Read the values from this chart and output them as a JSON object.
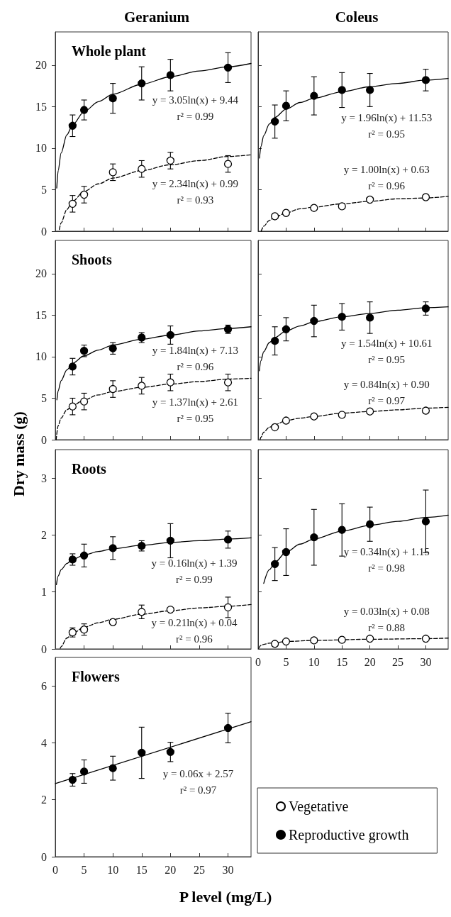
{
  "chart_data": [
    {
      "type": "scatter",
      "title": "Geranium",
      "subtitle": "Whole plant",
      "x": [
        3,
        5,
        10,
        15,
        20,
        30
      ],
      "xlim": [
        0,
        34
      ],
      "xticks": [
        0,
        5,
        10,
        15,
        20,
        25,
        30
      ],
      "ylim": [
        0,
        24
      ],
      "yticks": [
        0,
        5,
        10,
        15,
        20
      ],
      "tick_labels": "y",
      "series": [
        {
          "type": "line",
          "color": "#000000",
          "marker": "none",
          "line_style": "dashed",
          "x": [
            0.7,
            1,
            2,
            3,
            5,
            7.5,
            10,
            15,
            20,
            25,
            30,
            34
          ],
          "values": [
            0.2,
            1.0,
            2.6,
            3.6,
            4.8,
            5.7,
            6.4,
            7.3,
            8.0,
            8.5,
            9.0,
            9.2
          ]
        },
        {
          "type": "line",
          "color": "#000000",
          "marker": "none",
          "line_style": "solid",
          "x": [
            0.25,
            0.5,
            1,
            2,
            3,
            5,
            7.5,
            10,
            15,
            20,
            25,
            30,
            34
          ],
          "values": [
            5.2,
            7.3,
            9.4,
            11.6,
            12.8,
            14.4,
            15.6,
            16.5,
            17.7,
            18.6,
            19.3,
            19.8,
            20.2
          ]
        },
        {
          "color": "#ffffff",
          "marker": "circle",
          "values": [
            3.3,
            4.4,
            7.1,
            7.5,
            8.5,
            8.1
          ],
          "errors": [
            1.0,
            1.0,
            1.0,
            1.0,
            1.0,
            1.0
          ]
        },
        {
          "color": "#000000",
          "marker": "circle",
          "values": [
            12.7,
            14.6,
            16.0,
            17.8,
            18.8,
            19.7
          ],
          "errors": [
            1.3,
            1.2,
            1.8,
            2.0,
            1.9,
            1.8
          ]
        }
      ],
      "annotations": [
        "y = 3.05ln(x) + 9.44\nr² = 0.99",
        "y = 2.34ln(x) + 0.99\nr² = 0.93"
      ]
    },
    {
      "type": "scatter",
      "title": "Coleus",
      "x": [
        3,
        5,
        10,
        15,
        20,
        30
      ],
      "xlim": [
        0,
        34
      ],
      "xticks": [
        0,
        5,
        10,
        15,
        20,
        25,
        30
      ],
      "ylim": [
        0,
        24
      ],
      "yticks": [
        0,
        5,
        10,
        15,
        20
      ],
      "tick_labels": false,
      "series": [
        {
          "type": "line",
          "color": "#000000",
          "marker": "none",
          "line_style": "dashed",
          "x": [
            0.55,
            1,
            2,
            3,
            5,
            7.5,
            10,
            15,
            20,
            25,
            30,
            34
          ],
          "values": [
            0.0,
            0.6,
            1.3,
            1.7,
            2.2,
            2.7,
            2.9,
            3.3,
            3.6,
            3.9,
            4.0,
            4.2
          ]
        },
        {
          "type": "line",
          "color": "#000000",
          "marker": "none",
          "line_style": "solid",
          "x": [
            0.25,
            0.5,
            1,
            2,
            3,
            5,
            7.5,
            10,
            15,
            20,
            25,
            30,
            34
          ],
          "values": [
            8.8,
            10.2,
            11.5,
            12.9,
            13.7,
            14.7,
            15.5,
            16.0,
            16.8,
            17.4,
            17.8,
            18.2,
            18.4
          ]
        },
        {
          "color": "#ffffff",
          "marker": "circle",
          "values": [
            1.8,
            2.2,
            2.8,
            3.0,
            3.8,
            4.1
          ]
        },
        {
          "color": "#000000",
          "marker": "circle",
          "values": [
            13.2,
            15.1,
            16.3,
            17.0,
            17.0,
            18.2
          ],
          "errors": [
            2.0,
            1.8,
            2.3,
            2.1,
            2.0,
            1.3
          ]
        }
      ],
      "annotations": [
        "y = 1.96ln(x) + 11.53\nr² = 0.95",
        "y = 1.00ln(x) + 0.63\nr² = 0.96"
      ]
    },
    {
      "type": "scatter",
      "subtitle": "Shoots",
      "x": [
        3,
        5,
        10,
        15,
        20,
        30
      ],
      "xlim": [
        0,
        34
      ],
      "xticks": [
        0,
        5,
        10,
        15,
        20,
        25,
        30
      ],
      "ylim": [
        0,
        24
      ],
      "yticks": [
        0,
        5,
        10,
        15,
        20
      ],
      "tick_labels": "y",
      "series": [
        {
          "type": "line",
          "color": "#000000",
          "marker": "none",
          "line_style": "dashed",
          "x": [
            0.15,
            0.5,
            1,
            2,
            3,
            5,
            7.5,
            10,
            15,
            20,
            25,
            30,
            34
          ],
          "values": [
            0.0,
            1.7,
            2.6,
            3.6,
            4.1,
            4.8,
            5.4,
            5.8,
            6.3,
            6.7,
            7.0,
            7.3,
            7.4
          ]
        },
        {
          "type": "line",
          "color": "#000000",
          "marker": "none",
          "line_style": "solid",
          "x": [
            0.28,
            0.5,
            1,
            2,
            3,
            5,
            7.5,
            10,
            15,
            20,
            25,
            30,
            34
          ],
          "values": [
            4.8,
            5.9,
            7.1,
            8.4,
            9.2,
            10.1,
            10.8,
            11.4,
            12.1,
            12.6,
            13.1,
            13.4,
            13.6
          ]
        },
        {
          "color": "#ffffff",
          "marker": "circle",
          "values": [
            4.0,
            4.6,
            6.1,
            6.5,
            6.9,
            6.9
          ],
          "errors": [
            1.0,
            1.0,
            1.0,
            1.0,
            1.0,
            1.0
          ]
        },
        {
          "color": "#000000",
          "marker": "circle",
          "values": [
            8.8,
            10.7,
            11.0,
            12.3,
            12.6,
            13.3
          ],
          "errors": [
            1.0,
            0.7,
            0.7,
            0.6,
            1.1,
            0.5
          ]
        }
      ],
      "annotations": [
        "y = 1.84ln(x) + 7.13\nr² = 0.96",
        "y = 1.37ln(x) + 2.61\nr² = 0.95"
      ]
    },
    {
      "type": "scatter",
      "x": [
        3,
        5,
        10,
        15,
        20,
        30
      ],
      "xlim": [
        0,
        34
      ],
      "xticks": [
        0,
        5,
        10,
        15,
        20,
        25,
        30
      ],
      "ylim": [
        0,
        24
      ],
      "yticks": [
        0,
        5,
        10,
        15,
        20
      ],
      "tick_labels": false,
      "series": [
        {
          "type": "line",
          "color": "#000000",
          "marker": "none",
          "line_style": "dashed",
          "x": [
            0.35,
            0.5,
            1,
            2,
            3,
            5,
            7.5,
            10,
            15,
            20,
            25,
            30,
            34
          ],
          "values": [
            0.0,
            0.3,
            0.9,
            1.5,
            1.8,
            2.3,
            2.6,
            2.8,
            3.2,
            3.4,
            3.6,
            3.8,
            3.9
          ]
        },
        {
          "type": "line",
          "color": "#000000",
          "marker": "none",
          "line_style": "solid",
          "x": [
            0.22,
            0.5,
            1,
            2,
            3,
            5,
            7.5,
            10,
            15,
            20,
            25,
            30,
            34
          ],
          "values": [
            8.3,
            9.5,
            10.6,
            11.7,
            12.3,
            13.1,
            13.7,
            14.2,
            14.8,
            15.2,
            15.6,
            15.9,
            16.0
          ]
        },
        {
          "color": "#ffffff",
          "marker": "circle",
          "values": [
            1.5,
            2.3,
            2.8,
            3.0,
            3.4,
            3.5
          ]
        },
        {
          "color": "#000000",
          "marker": "circle",
          "values": [
            11.9,
            13.3,
            14.3,
            14.8,
            14.7,
            15.8
          ],
          "errors": [
            1.7,
            1.4,
            1.9,
            1.6,
            1.9,
            0.8
          ]
        }
      ],
      "annotations": [
        "y = 1.54ln(x) + 10.61\nr² = 0.95",
        "y = 0.84ln(x) + 0.90\nr² = 0.97"
      ]
    },
    {
      "type": "scatter",
      "subtitle": "Roots",
      "ylabel": "Dry mass (g)",
      "x": [
        3,
        5,
        10,
        15,
        20,
        30
      ],
      "xlim": [
        0,
        34
      ],
      "xticks": [
        0,
        5,
        10,
        15,
        20,
        25,
        30
      ],
      "ylim": [
        0,
        3.5
      ],
      "yticks": [
        0,
        1,
        2,
        3
      ],
      "tick_labels": "y",
      "series": [
        {
          "type": "line",
          "color": "#000000",
          "marker": "none",
          "line_style": "dashed",
          "x": [
            0.85,
            1,
            2,
            3,
            5,
            7.5,
            10,
            15,
            20,
            25,
            30,
            34
          ],
          "values": [
            0.01,
            0.04,
            0.19,
            0.27,
            0.38,
            0.46,
            0.52,
            0.61,
            0.67,
            0.72,
            0.75,
            0.78
          ]
        },
        {
          "type": "line",
          "color": "#000000",
          "marker": "none",
          "line_style": "solid",
          "x": [
            0.2,
            0.5,
            1,
            2,
            3,
            5,
            7.5,
            10,
            15,
            20,
            25,
            30,
            34
          ],
          "values": [
            1.13,
            1.28,
            1.39,
            1.5,
            1.57,
            1.65,
            1.71,
            1.76,
            1.82,
            1.87,
            1.9,
            1.93,
            1.95
          ]
        },
        {
          "color": "#ffffff",
          "marker": "circle",
          "values": [
            0.29,
            0.34,
            0.47,
            0.65,
            0.69,
            0.73
          ],
          "errors": [
            0.08,
            0.1,
            0.04,
            0.12,
            0.03,
            0.18
          ]
        },
        {
          "color": "#000000",
          "marker": "circle",
          "values": [
            1.57,
            1.64,
            1.77,
            1.81,
            1.9,
            1.92
          ],
          "errors": [
            0.1,
            0.2,
            0.2,
            0.09,
            0.3,
            0.15
          ]
        }
      ],
      "annotations": [
        "y = 0.16ln(x) + 1.39\nr² = 0.99",
        "y = 0.21ln(x) + 0.04\nr² = 0.96"
      ]
    },
    {
      "type": "scatter",
      "x": [
        3,
        5,
        10,
        15,
        20,
        30
      ],
      "xlim": [
        0,
        34
      ],
      "xticks": [
        0,
        5,
        10,
        15,
        20,
        25,
        30
      ],
      "ylim": [
        0,
        3.5
      ],
      "yticks": [
        0,
        1,
        2,
        3
      ],
      "tick_labels": "x",
      "legend": "bottom",
      "series": [
        {
          "type": "line",
          "color": "#000000",
          "marker": "none",
          "line_style": "dashed",
          "x": [
            0.1,
            0.5,
            1,
            2,
            3,
            5,
            10,
            20,
            30,
            34
          ],
          "values": [
            0.01,
            0.06,
            0.08,
            0.1,
            0.11,
            0.13,
            0.15,
            0.17,
            0.18,
            0.19
          ]
        },
        {
          "type": "line",
          "color": "#000000",
          "marker": "none",
          "line_style": "solid",
          "x": [
            1,
            2,
            3,
            5,
            7.5,
            10,
            15,
            20,
            25,
            30,
            34
          ],
          "values": [
            1.15,
            1.39,
            1.52,
            1.7,
            1.84,
            1.93,
            2.07,
            2.17,
            2.24,
            2.31,
            2.35
          ]
        },
        {
          "name": "Vegetative",
          "color": "#ffffff",
          "marker": "circle",
          "values": [
            0.09,
            0.13,
            0.15,
            0.16,
            0.18,
            0.18
          ]
        },
        {
          "name": "Reproductive growth",
          "color": "#000000",
          "marker": "circle",
          "values": [
            1.49,
            1.7,
            1.96,
            2.09,
            2.19,
            2.24
          ],
          "errors": [
            0.29,
            0.41,
            0.49,
            0.46,
            0.3,
            0.55
          ]
        }
      ],
      "annotations": [
        "y = 0.34ln(x) + 1.15\nr² = 0.98",
        "y = 0.03ln(x) + 0.08\nr² = 0.88"
      ]
    },
    {
      "type": "scatter",
      "subtitle": "Flowers",
      "xlabel": "P level (mg/L)",
      "x": [
        3,
        5,
        10,
        15,
        20,
        30
      ],
      "xlim": [
        0,
        34
      ],
      "xticks": [
        0,
        5,
        10,
        15,
        20,
        25,
        30
      ],
      "ylim": [
        0,
        7
      ],
      "yticks": [
        0,
        2,
        4,
        6
      ],
      "series": [
        {
          "type": "line",
          "color": "#000000",
          "marker": "none",
          "line_style": "solid",
          "x": [
            0,
            34
          ],
          "values": [
            2.57,
            4.74
          ]
        },
        {
          "color": "#000000",
          "marker": "circle",
          "values": [
            2.7,
            2.99,
            3.11,
            3.65,
            3.68,
            4.52
          ],
          "errors": [
            0.22,
            0.41,
            0.42,
            0.9,
            0.34,
            0.52
          ]
        }
      ],
      "annotations": [
        "y = 0.06x + 2.57\nr² = 0.97"
      ]
    }
  ]
}
